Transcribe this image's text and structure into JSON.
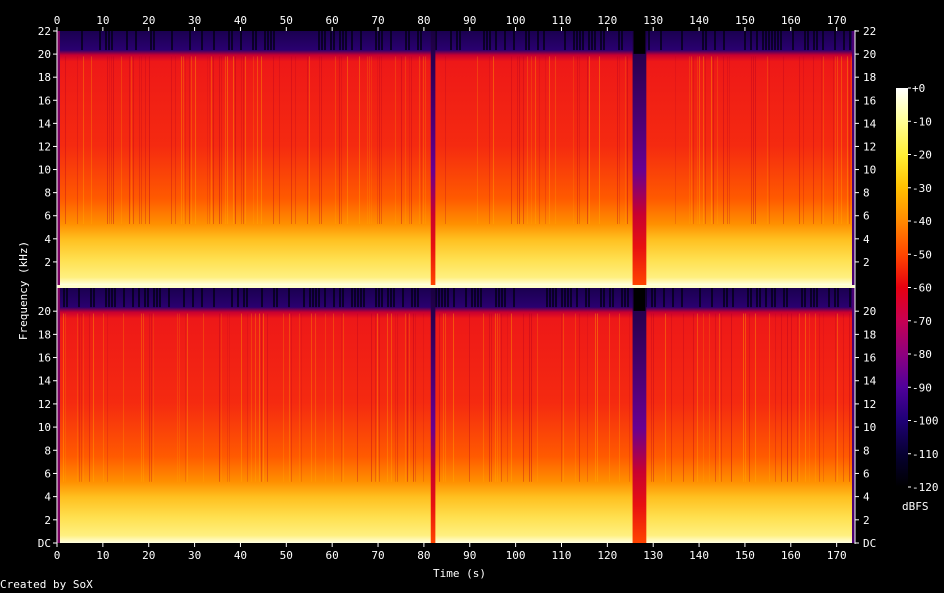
{
  "footer": "Created by SoX",
  "chart_data": {
    "type": "heatmap",
    "subtype": "spectrogram",
    "channels": 2,
    "xlabel": "Time (s)",
    "ylabel": "Frequency (kHz)",
    "xlim": [
      0,
      174
    ],
    "ylim": [
      0,
      22
    ],
    "x_ticks": [
      0,
      10,
      20,
      30,
      40,
      50,
      60,
      70,
      80,
      90,
      100,
      110,
      120,
      130,
      140,
      150,
      160,
      170
    ],
    "y_ticks_top": [
      "2",
      "4",
      "6",
      "8",
      "10",
      "12",
      "14",
      "16",
      "18",
      "20",
      "22"
    ],
    "y_ticks_bottom": [
      "DC",
      "2",
      "4",
      "6",
      "8",
      "10",
      "12",
      "14",
      "16",
      "18",
      "20"
    ],
    "colorbar": {
      "label": "dBFS",
      "range": [
        -120,
        0
      ],
      "ticks": [
        "+0",
        "-10",
        "-20",
        "-30",
        "-40",
        "-50",
        "-60",
        "-70",
        "-80",
        "-90",
        "-100",
        "-110",
        "-120"
      ],
      "colors": [
        "#ffffff",
        "#ffff99",
        "#ffee33",
        "#ffc000",
        "#ff8c00",
        "#ff4400",
        "#e60010",
        "#c80050",
        "#8c0080",
        "#50009a",
        "#200078",
        "#060030",
        "#000000"
      ]
    },
    "notable_features": {
      "lowpass_cutoff_khz": 20,
      "quiet_segments_s": [
        [
          81.5,
          82.5
        ],
        [
          125.5,
          128.5
        ]
      ]
    },
    "grid": false,
    "legend": "right"
  }
}
